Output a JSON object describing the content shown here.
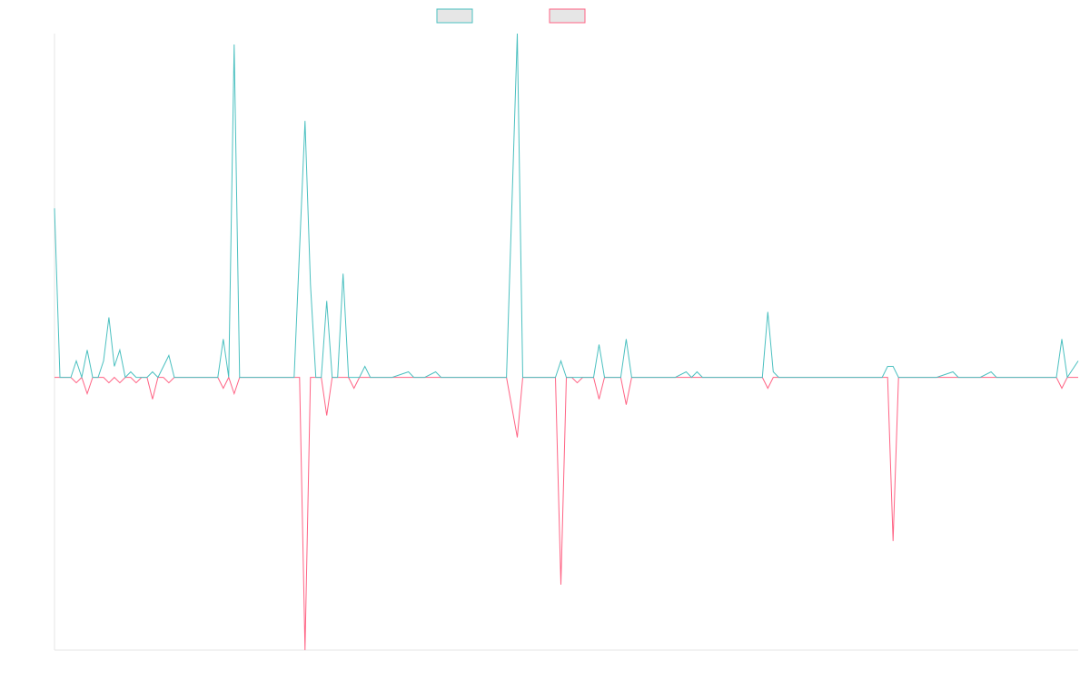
{
  "chart_data": {
    "type": "line",
    "title": "",
    "xlabel": "",
    "ylabel": "",
    "x_range": [
      0,
      188
    ],
    "ylim": [
      -50,
      63
    ],
    "grid": false,
    "legend_position": "top-center",
    "series": [
      {
        "name": "",
        "color": "#4bc0c0",
        "fill": "#e6e6e6",
        "values": [
          31,
          0,
          0,
          0,
          0,
          0,
          0,
          0,
          0,
          0,
          0,
          0,
          0,
          0,
          0,
          0,
          0,
          0,
          0,
          0,
          0,
          0,
          0,
          0,
          0,
          0,
          0,
          0,
          0,
          0,
          0,
          7,
          0,
          61,
          0,
          0,
          0,
          0,
          0,
          0,
          0,
          0,
          0,
          0,
          0,
          0,
          47,
          0,
          0,
          0,
          0,
          0,
          0,
          0,
          0,
          0,
          0,
          0,
          0,
          0,
          0,
          0,
          0,
          0,
          0,
          0,
          0,
          0,
          0,
          0,
          0,
          0,
          0,
          0,
          0,
          0,
          0,
          0,
          0,
          0,
          0,
          0,
          0,
          0,
          0,
          63,
          0,
          0,
          0,
          0,
          0,
          0,
          0,
          0,
          0,
          0,
          0,
          0,
          0,
          0,
          0,
          0,
          0,
          0,
          0,
          0,
          0,
          0,
          0,
          0,
          0,
          0,
          0,
          0,
          0,
          0,
          0,
          0,
          0,
          0,
          0,
          0,
          0,
          0,
          0,
          0,
          0,
          0,
          0,
          0,
          0,
          12,
          0,
          0,
          0,
          0,
          0,
          0,
          0,
          0,
          0,
          0,
          0,
          0,
          0,
          0,
          0,
          0,
          0,
          0,
          0,
          0,
          0,
          0,
          0,
          0,
          0,
          0,
          0,
          0,
          0,
          0,
          0,
          0,
          0,
          0,
          0,
          0,
          0,
          0,
          0,
          0,
          0,
          0,
          0,
          0,
          0,
          0,
          0,
          0,
          0,
          0,
          0,
          0,
          0,
          7,
          0,
          3
        ]
      },
      {
        "name": "",
        "color": "#ff6384",
        "fill": "#e6e6e6",
        "values": [
          0,
          0,
          0,
          0,
          0,
          -2,
          0,
          0,
          0,
          0,
          0,
          0,
          0,
          0,
          0,
          0,
          0,
          0,
          0,
          0,
          0,
          0,
          0,
          0,
          0,
          0,
          0,
          0,
          0,
          0,
          0,
          -2,
          0,
          -3,
          0,
          0,
          0,
          0,
          0,
          0,
          0,
          0,
          0,
          0,
          0,
          0,
          -50,
          0,
          0,
          0,
          0,
          0,
          0,
          0,
          0,
          0,
          0,
          0,
          0,
          0,
          0,
          0,
          0,
          0,
          0,
          0,
          0,
          0,
          0,
          0,
          0,
          0,
          0,
          0,
          0,
          0,
          0,
          0,
          0,
          0,
          0,
          0,
          0,
          0,
          0,
          -11,
          0,
          0,
          0,
          0,
          0,
          0,
          0,
          -38,
          0,
          0,
          0,
          0,
          0,
          0,
          0,
          0,
          0,
          0,
          0,
          0,
          0,
          0,
          0,
          0,
          0,
          0,
          0,
          0,
          0,
          0,
          0,
          0,
          0,
          0,
          0,
          0,
          0,
          0,
          0,
          0,
          0,
          0,
          0,
          0,
          0,
          -2,
          0,
          0,
          0,
          0,
          0,
          0,
          0,
          0,
          0,
          0,
          0,
          0,
          0,
          0,
          0,
          0,
          0,
          0,
          0,
          0,
          0,
          0,
          -30,
          0,
          0,
          0,
          0,
          0,
          0,
          0,
          0,
          0,
          0,
          0,
          0,
          0,
          0,
          0,
          0,
          0,
          0,
          0,
          0,
          0,
          0,
          0,
          0,
          0,
          0,
          0,
          0,
          0,
          0,
          -2,
          0,
          0
        ]
      }
    ],
    "extra_points": {
      "teal": [
        [
          0,
          31
        ],
        [
          1,
          0
        ],
        [
          3,
          0
        ],
        [
          4,
          3
        ],
        [
          5,
          0
        ],
        [
          6,
          5
        ],
        [
          7,
          0
        ],
        [
          8,
          0
        ],
        [
          9,
          3
        ],
        [
          10,
          11
        ],
        [
          11,
          2
        ],
        [
          12,
          5
        ],
        [
          13,
          0
        ],
        [
          14,
          1
        ],
        [
          15,
          0
        ],
        [
          17,
          0
        ],
        [
          18,
          1
        ],
        [
          19,
          0
        ],
        [
          21,
          4
        ],
        [
          22,
          0
        ],
        [
          30,
          0
        ],
        [
          31,
          7
        ],
        [
          32,
          0
        ],
        [
          33,
          61
        ],
        [
          34,
          0
        ],
        [
          40,
          0
        ],
        [
          41,
          0
        ],
        [
          43,
          0
        ],
        [
          44,
          0
        ],
        [
          46,
          47
        ],
        [
          47,
          17
        ],
        [
          48,
          0
        ],
        [
          49,
          0
        ],
        [
          50,
          14
        ],
        [
          51,
          0
        ],
        [
          52,
          0
        ],
        [
          53,
          19
        ],
        [
          54,
          0
        ],
        [
          56,
          0
        ],
        [
          57,
          2
        ],
        [
          58,
          0
        ],
        [
          59,
          0
        ],
        [
          62,
          0
        ],
        [
          65,
          1
        ],
        [
          66,
          0
        ],
        [
          68,
          0
        ],
        [
          70,
          1
        ],
        [
          71,
          0
        ],
        [
          78,
          0
        ],
        [
          80,
          0
        ],
        [
          83,
          0
        ],
        [
          85,
          63
        ],
        [
          86,
          0
        ],
        [
          92,
          0
        ],
        [
          93,
          3
        ],
        [
          94,
          0
        ],
        [
          95,
          0
        ],
        [
          96,
          0
        ],
        [
          99,
          0
        ],
        [
          100,
          6
        ],
        [
          101,
          0
        ],
        [
          104,
          0
        ],
        [
          105,
          7
        ],
        [
          106,
          0
        ],
        [
          110,
          0
        ],
        [
          112,
          0
        ],
        [
          114,
          0
        ],
        [
          116,
          1
        ],
        [
          117,
          0
        ],
        [
          118,
          1
        ],
        [
          119,
          0
        ],
        [
          120,
          0
        ],
        [
          122,
          0
        ],
        [
          125,
          0
        ],
        [
          127,
          0
        ],
        [
          130,
          0
        ],
        [
          131,
          12
        ],
        [
          132,
          1
        ],
        [
          133,
          0
        ],
        [
          136,
          0
        ],
        [
          150,
          0
        ],
        [
          152,
          0
        ],
        [
          153,
          2
        ],
        [
          154,
          2
        ],
        [
          155,
          0
        ],
        [
          160,
          0
        ],
        [
          162,
          0
        ],
        [
          165,
          1
        ],
        [
          166,
          0
        ],
        [
          170,
          0
        ],
        [
          172,
          1
        ],
        [
          173,
          0
        ],
        [
          176,
          0
        ],
        [
          182,
          0
        ],
        [
          184,
          0
        ],
        [
          185,
          7
        ],
        [
          186,
          0
        ],
        [
          188,
          3
        ]
      ],
      "pink": [
        [
          0,
          0
        ],
        [
          1,
          0
        ],
        [
          2,
          0
        ],
        [
          3,
          0
        ],
        [
          4,
          -1
        ],
        [
          5,
          0
        ],
        [
          6,
          -3
        ],
        [
          7,
          0
        ],
        [
          8,
          0
        ],
        [
          9,
          0
        ],
        [
          10,
          -1
        ],
        [
          11,
          0
        ],
        [
          12,
          -1
        ],
        [
          13,
          0
        ],
        [
          14,
          0
        ],
        [
          15,
          -1
        ],
        [
          16,
          0
        ],
        [
          17,
          0
        ],
        [
          18,
          -4
        ],
        [
          19,
          0
        ],
        [
          20,
          0
        ],
        [
          21,
          -1
        ],
        [
          22,
          0
        ],
        [
          30,
          0
        ],
        [
          31,
          -2
        ],
        [
          32,
          0
        ],
        [
          33,
          -3
        ],
        [
          34,
          0
        ],
        [
          45,
          0
        ],
        [
          46,
          -50
        ],
        [
          47,
          0
        ],
        [
          48,
          0
        ],
        [
          49,
          0
        ],
        [
          50,
          -7
        ],
        [
          51,
          0
        ],
        [
          52,
          0
        ],
        [
          53,
          0
        ],
        [
          54,
          0
        ],
        [
          55,
          -2
        ],
        [
          56,
          0
        ],
        [
          83,
          0
        ],
        [
          85,
          -11
        ],
        [
          86,
          0
        ],
        [
          92,
          0
        ],
        [
          93,
          -38
        ],
        [
          94,
          0
        ],
        [
          95,
          0
        ],
        [
          96,
          -1
        ],
        [
          97,
          0
        ],
        [
          99,
          0
        ],
        [
          100,
          -4
        ],
        [
          101,
          0
        ],
        [
          104,
          0
        ],
        [
          105,
          -5
        ],
        [
          106,
          0
        ],
        [
          130,
          0
        ],
        [
          131,
          -2
        ],
        [
          132,
          0
        ],
        [
          153,
          0
        ],
        [
          154,
          -30
        ],
        [
          155,
          0
        ],
        [
          184,
          0
        ],
        [
          185,
          -2
        ],
        [
          186,
          0
        ],
        [
          188,
          0
        ]
      ]
    }
  }
}
